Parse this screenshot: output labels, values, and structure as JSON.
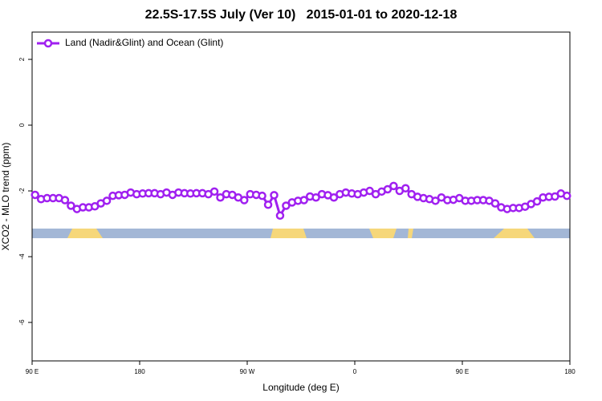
{
  "chart_data": {
    "type": "line",
    "title": "22.5S-17.5S July (Ver 10)   2015-01-01 to 2020-12-18",
    "x_label": "Longitude (deg E)",
    "y_label": "XCO2 - MLO trend (ppm)",
    "x": [
      92.5,
      97.5,
      102.5,
      107.5,
      112.5,
      117.5,
      122.5,
      127.5,
      132.5,
      137.5,
      142.5,
      147.5,
      152.5,
      157.5,
      162.5,
      167.5,
      172.5,
      177.5,
      182.5,
      187.5,
      192.5,
      197.5,
      202.5,
      207.5,
      212.5,
      217.5,
      222.5,
      227.5,
      232.5,
      237.5,
      242.5,
      247.5,
      252.5,
      257.5,
      262.5,
      267.5,
      272.5,
      277.5,
      282.5,
      287.5,
      292.5,
      297.5,
      302.5,
      307.5,
      312.5,
      317.5,
      322.5,
      327.5,
      332.5,
      337.5,
      342.5,
      347.5,
      352.5,
      357.5,
      362.5,
      367.5,
      372.5,
      377.5,
      382.5,
      387.5,
      392.5,
      397.5,
      402.5,
      407.5,
      412.5,
      417.5,
      422.5,
      427.5,
      432.5,
      437.5,
      442.5,
      447.5,
      452.5,
      457.5,
      462.5,
      467.5,
      472.5,
      477.5,
      482.5,
      487.5,
      492.5,
      497.5,
      502.5,
      507.5,
      512.5,
      517.5,
      522.5,
      527.5,
      532.5,
      537.5
    ],
    "series": [
      {
        "name": "Land (Nadir&Glint) and Ocean (Glint)",
        "color": "#a020f0",
        "values": [
          -2.12,
          -2.25,
          -2.22,
          -2.22,
          -2.22,
          -2.28,
          -2.45,
          -2.55,
          -2.5,
          -2.5,
          -2.47,
          -2.38,
          -2.3,
          -2.15,
          -2.13,
          -2.12,
          -2.05,
          -2.1,
          -2.08,
          -2.07,
          -2.07,
          -2.1,
          -2.05,
          -2.12,
          -2.05,
          -2.07,
          -2.08,
          -2.07,
          -2.07,
          -2.1,
          -2.02,
          -2.2,
          -2.1,
          -2.12,
          -2.2,
          -2.28,
          -2.1,
          -2.12,
          -2.15,
          -2.42,
          -2.13,
          -2.75,
          -2.45,
          -2.35,
          -2.3,
          -2.28,
          -2.17,
          -2.2,
          -2.1,
          -2.13,
          -2.2,
          -2.1,
          -2.05,
          -2.08,
          -2.1,
          -2.05,
          -2.0,
          -2.1,
          -2.02,
          -1.95,
          -1.85,
          -2.0,
          -1.92,
          -2.1,
          -2.18,
          -2.22,
          -2.25,
          -2.3,
          -2.2,
          -2.28,
          -2.27,
          -2.22,
          -2.3,
          -2.3,
          -2.28,
          -2.28,
          -2.3,
          -2.38,
          -2.5,
          -2.55,
          -2.52,
          -2.52,
          -2.48,
          -2.4,
          -2.32,
          -2.2,
          -2.18,
          -2.17,
          -2.08,
          -2.15
        ]
      }
    ],
    "xlim": [
      90,
      540
    ],
    "xticks": [
      {
        "value": 90,
        "label": "90 E"
      },
      180,
      {
        "value": 270,
        "label": "90 W"
      },
      {
        "value": 360,
        "label": "0"
      },
      {
        "value": 450,
        "label": "90 E"
      },
      {
        "value": 540,
        "label": "180"
      }
    ],
    "ylim": [
      -7.17,
      2.83
    ],
    "yticks": [
      2,
      0,
      -2,
      -4,
      -6
    ],
    "legend": "topleft"
  }
}
